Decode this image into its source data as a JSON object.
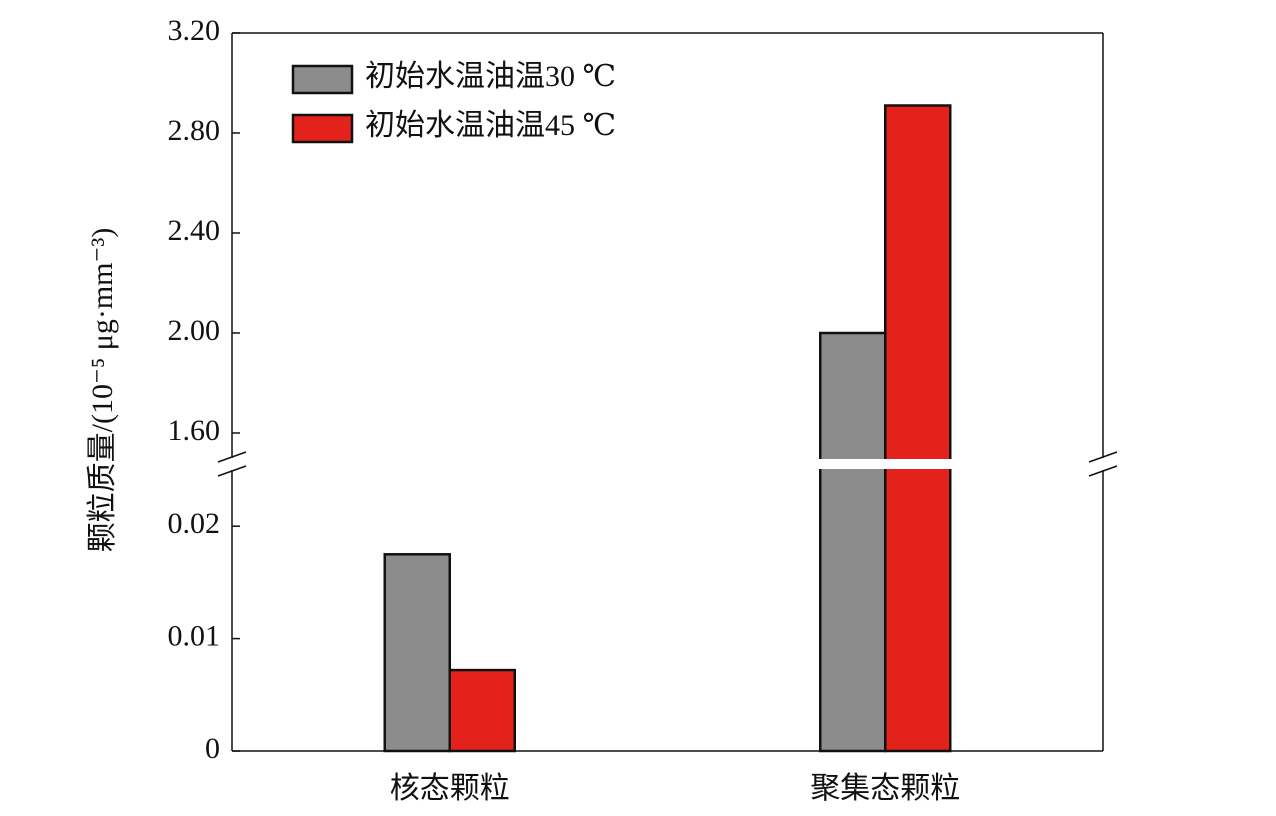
{
  "chart_data": {
    "type": "bar",
    "ylabel": "颗粒质量/(10⁻⁵ μg·mm⁻³)",
    "categories": [
      "核态颗粒",
      "聚集态颗粒"
    ],
    "series": [
      {
        "name": "初始水温油温30 ℃",
        "color": "#8c8c8c",
        "values": [
          0.0175,
          2.0
        ]
      },
      {
        "name": "初始水温油温45 ℃",
        "color": "#e3231b",
        "values": [
          0.0072,
          2.91
        ]
      }
    ],
    "ylim": [
      0,
      3.2
    ],
    "axis_break": [
      0.025,
      1.5
    ],
    "yticks": [
      0,
      0.01,
      0.02,
      {
        "value": 1.6,
        "label": "1.60"
      },
      {
        "value": 2.0,
        "label": "2.00"
      },
      {
        "value": 2.4,
        "label": "2.40"
      },
      {
        "value": 2.8,
        "label": "2.80"
      },
      {
        "value": 3.2,
        "label": "3.20"
      }
    ],
    "legend": "upper left"
  }
}
